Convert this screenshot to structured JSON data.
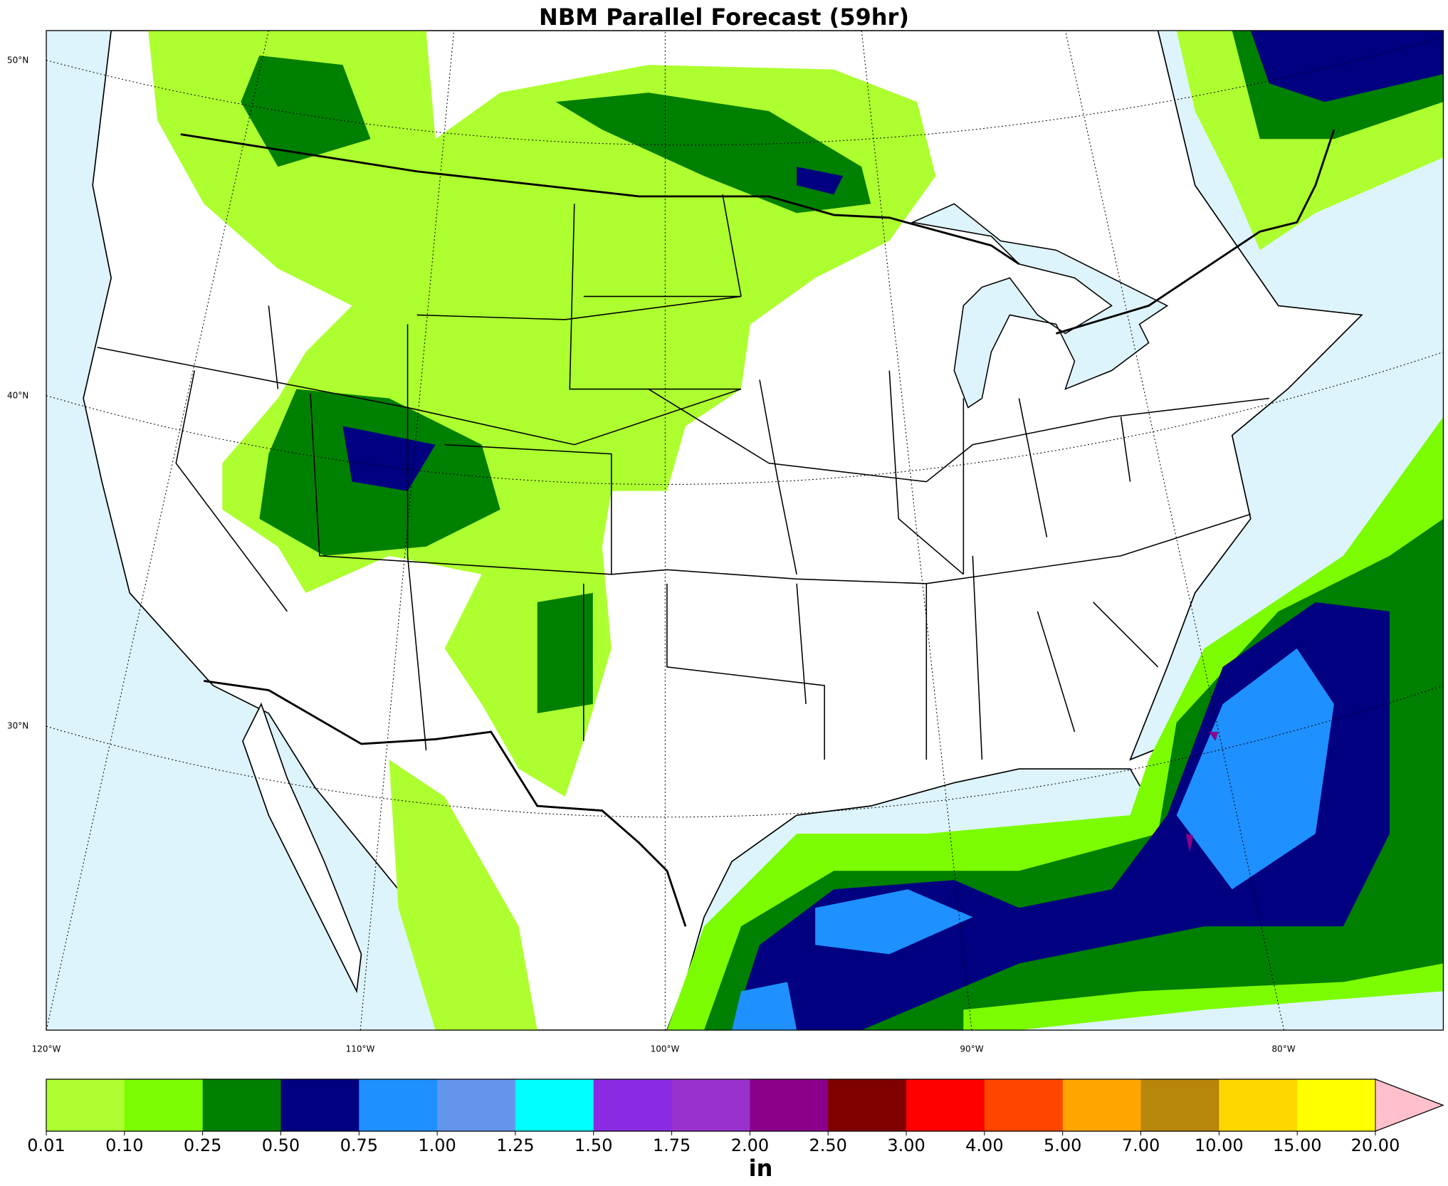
{
  "map": {
    "title": "NBM Parallel Forecast (59hr)",
    "lat_labels": [
      "50°N",
      "40°N",
      "30°N"
    ],
    "lon_labels": [
      "120°W",
      "110°W",
      "100°W",
      "90°W",
      "80°W"
    ]
  },
  "colorbar": {
    "levels": [
      "0.01",
      "0.10",
      "0.25",
      "0.50",
      "0.75",
      "1.00",
      "1.25",
      "1.50",
      "1.75",
      "2.00",
      "2.50",
      "3.00",
      "4.00",
      "5.00",
      "7.00",
      "10.00",
      "15.00",
      "20.00"
    ],
    "colors": [
      "#adff2f",
      "#7cfc00",
      "#008000",
      "#000080",
      "#1e90ff",
      "#6495ed",
      "#00ffff",
      "#8a2be2",
      "#9932cc",
      "#8b008b",
      "#800000",
      "#ff0000",
      "#ff4500",
      "#ffa500",
      "#b8860b",
      "#ffd700",
      "#ffff00"
    ],
    "extend_color": "#ffc0cb",
    "unit": "in"
  }
}
